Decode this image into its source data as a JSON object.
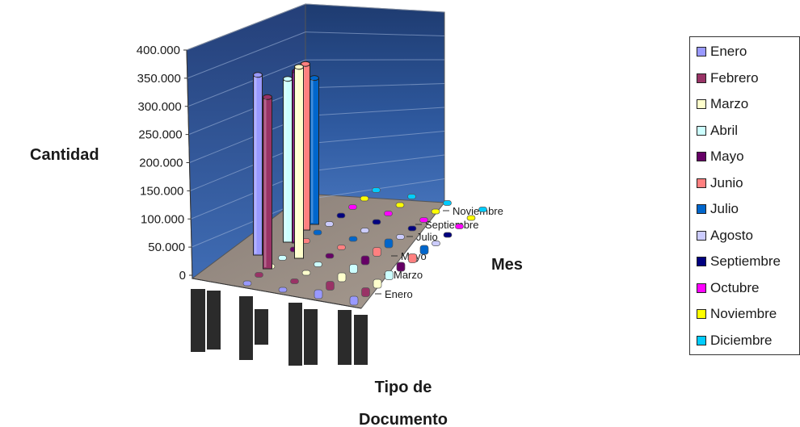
{
  "chart_data": {
    "type": "bar",
    "subtype": "3d-column",
    "title": "",
    "ylabel": "Cantidad",
    "xlabel": "Tipo de Documento",
    "zlabel": "Mes",
    "ylim": [
      0,
      400000
    ],
    "y_ticks": [
      "0",
      "50.000",
      "100.000",
      "150.000",
      "200.000",
      "250.000",
      "300.000",
      "350.000",
      "400.000"
    ],
    "z_tick_labels": [
      "Enero",
      "Marzo",
      "Mayo",
      "Julio",
      "Septiembre",
      "Noviembre"
    ],
    "categories": [
      "",
      "",
      "",
      "",
      ""
    ],
    "legend_position": "right",
    "grid": true,
    "series": [
      {
        "name": "Enero",
        "color": "#9999ff",
        "values": [
          320000,
          2000,
          2000,
          8000,
          6000
        ]
      },
      {
        "name": "Febrero",
        "color": "#993366",
        "values": [
          305000,
          2000,
          2000,
          8000,
          6000
        ]
      },
      {
        "name": "Marzo",
        "color": "#ffffcc",
        "values": [
          340000,
          2000,
          2000,
          8000,
          6000
        ]
      },
      {
        "name": "Abril",
        "color": "#ccffff",
        "values": [
          290000,
          2000,
          2000,
          8000,
          6000
        ]
      },
      {
        "name": "Mayo",
        "color": "#660066",
        "values": [
          305000,
          2000,
          2000,
          8000,
          6000
        ]
      },
      {
        "name": "Junio",
        "color": "#ff8080",
        "values": [
          295000,
          2000,
          2000,
          8000,
          6000
        ]
      },
      {
        "name": "Julio",
        "color": "#0066cc",
        "values": [
          260000,
          2000,
          2000,
          8000,
          6000
        ]
      },
      {
        "name": "Agosto",
        "color": "#ccccff",
        "values": [
          0,
          0,
          0,
          0,
          0
        ]
      },
      {
        "name": "Septiembre",
        "color": "#000080",
        "values": [
          0,
          0,
          0,
          0,
          0
        ]
      },
      {
        "name": "Octubre",
        "color": "#ff00ff",
        "values": [
          0,
          0,
          0,
          0,
          0
        ]
      },
      {
        "name": "Noviembre",
        "color": "#ffff00",
        "values": [
          0,
          0,
          0,
          0,
          0
        ]
      },
      {
        "name": "Diciembre",
        "color": "#00ccff",
        "values": [
          0,
          0,
          0,
          0,
          0
        ]
      }
    ]
  }
}
